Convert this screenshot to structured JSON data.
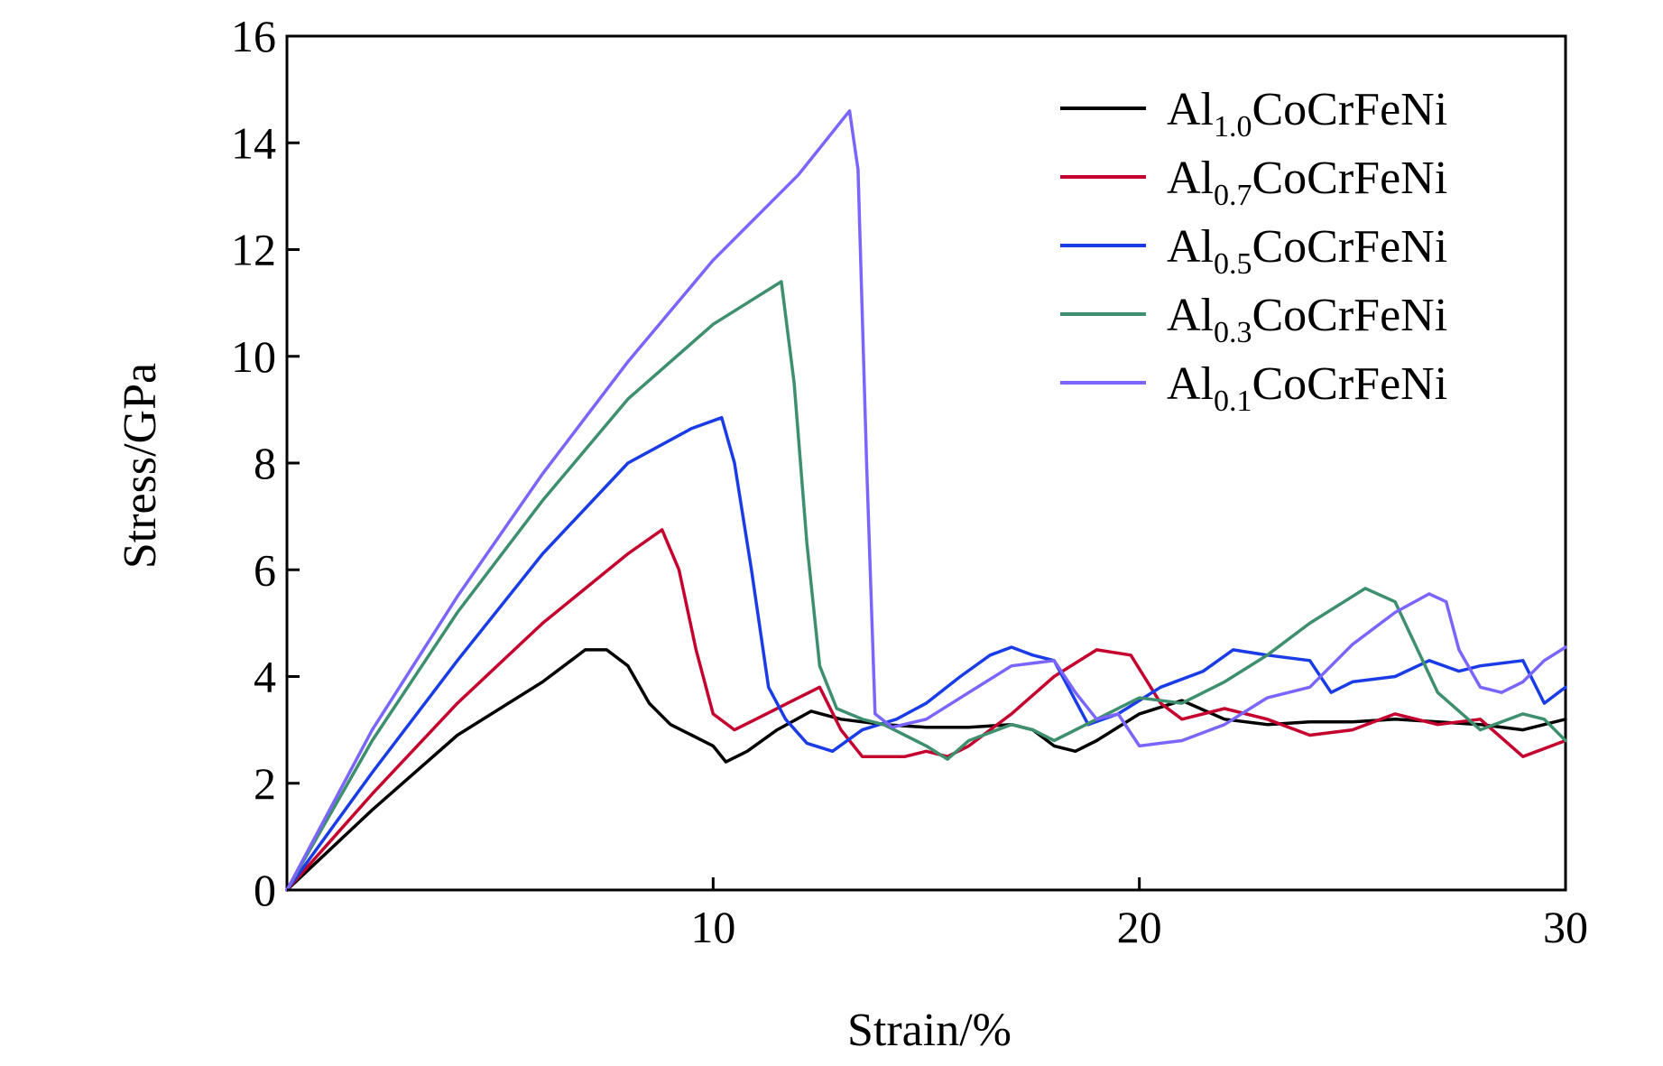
{
  "chart_data": {
    "type": "line",
    "title": "",
    "xlabel": "Strain/%",
    "ylabel": "Stress/GPa",
    "xlim": [
      0,
      30
    ],
    "ylim": [
      0,
      16
    ],
    "xticks": [
      10,
      20,
      30
    ],
    "yticks": [
      0,
      2,
      4,
      6,
      8,
      10,
      12,
      14,
      16
    ],
    "grid": false,
    "legend_position": "top-right",
    "series": [
      {
        "name": "Al1.0CoCrFeNi",
        "label_base": "Al",
        "label_sub": "1.0",
        "label_rest": "CoCrFeNi",
        "color": "#000000",
        "x": [
          0,
          2,
          4,
          6,
          7,
          7.5,
          8,
          8.5,
          9,
          9.5,
          10,
          10.3,
          10.8,
          11.5,
          12.3,
          13,
          14,
          15,
          16,
          17,
          17.5,
          18,
          18.5,
          19,
          20,
          21,
          22,
          23,
          24,
          25,
          26,
          27,
          28,
          29,
          30
        ],
        "y": [
          0,
          1.5,
          2.9,
          3.9,
          4.5,
          4.5,
          4.2,
          3.5,
          3.1,
          2.9,
          2.7,
          2.4,
          2.6,
          3.0,
          3.35,
          3.2,
          3.1,
          3.05,
          3.05,
          3.1,
          3.0,
          2.7,
          2.6,
          2.8,
          3.3,
          3.55,
          3.2,
          3.1,
          3.15,
          3.15,
          3.2,
          3.15,
          3.1,
          3.0,
          3.2
        ]
      },
      {
        "name": "Al0.7CoCrFeNi",
        "label_base": "Al",
        "label_sub": "0.7",
        "label_rest": "CoCrFeNi",
        "color": "#c4002e",
        "x": [
          0,
          2,
          4,
          6,
          8,
          8.8,
          9.2,
          9.6,
          10,
          10.5,
          11,
          12,
          12.5,
          13,
          13.5,
          14,
          14.5,
          15,
          15.5,
          16,
          17,
          18,
          19,
          19.8,
          20.5,
          21,
          22,
          23,
          24,
          25,
          26,
          27,
          28,
          29,
          30
        ],
        "y": [
          0,
          1.8,
          3.5,
          5.0,
          6.3,
          6.75,
          6.0,
          4.5,
          3.3,
          3.0,
          3.2,
          3.6,
          3.8,
          3.0,
          2.5,
          2.5,
          2.5,
          2.6,
          2.5,
          2.7,
          3.3,
          4.0,
          4.5,
          4.4,
          3.5,
          3.2,
          3.4,
          3.2,
          2.9,
          3.0,
          3.3,
          3.1,
          3.2,
          2.5,
          2.8
        ]
      },
      {
        "name": "Al0.5CoCrFeNi",
        "label_base": "Al",
        "label_sub": "0.5",
        "label_rest": "CoCrFeNi",
        "color": "#1a3ce6",
        "x": [
          0,
          2,
          4,
          6,
          8,
          9.5,
          10.2,
          10.5,
          10.9,
          11.3,
          11.7,
          12.2,
          12.8,
          13.5,
          14.3,
          15,
          15.8,
          16.5,
          17,
          17.5,
          18,
          18.8,
          19.5,
          20.5,
          21.5,
          22.2,
          23,
          24,
          24.5,
          25,
          26,
          26.8,
          27.5,
          28,
          29,
          29.5,
          30
        ],
        "y": [
          0,
          2.2,
          4.3,
          6.3,
          8.0,
          8.65,
          8.85,
          8.0,
          6.0,
          3.8,
          3.2,
          2.75,
          2.6,
          3.0,
          3.2,
          3.5,
          4.0,
          4.4,
          4.55,
          4.4,
          4.3,
          3.1,
          3.3,
          3.8,
          4.1,
          4.5,
          4.4,
          4.3,
          3.7,
          3.9,
          4.0,
          4.3,
          4.1,
          4.2,
          4.3,
          3.5,
          3.8
        ]
      },
      {
        "name": "Al0.3CoCrFeNi",
        "label_base": "Al",
        "label_sub": "0.3",
        "label_rest": "CoCrFeNi",
        "color": "#3e8f6e",
        "x": [
          0,
          2,
          4,
          6,
          8,
          10,
          11,
          11.6,
          11.9,
          12.2,
          12.5,
          12.9,
          13.5,
          14,
          15,
          15.5,
          16,
          17,
          17.5,
          18,
          19,
          20,
          21,
          22,
          23,
          24,
          25,
          25.3,
          26,
          27,
          28,
          29,
          29.5,
          30
        ],
        "y": [
          0,
          2.8,
          5.2,
          7.3,
          9.2,
          10.6,
          11.1,
          11.4,
          9.5,
          6.5,
          4.2,
          3.4,
          3.2,
          3.1,
          2.7,
          2.45,
          2.8,
          3.1,
          3.0,
          2.8,
          3.2,
          3.6,
          3.5,
          3.9,
          4.4,
          5.0,
          5.5,
          5.65,
          5.4,
          3.7,
          3.0,
          3.3,
          3.2,
          2.8
        ]
      },
      {
        "name": "Al0.1CoCrFeNi",
        "label_base": "Al",
        "label_sub": "0.1",
        "label_rest": "CoCrFeNi",
        "color": "#7a66ff",
        "x": [
          0,
          2,
          4,
          6,
          8,
          10,
          12,
          13.2,
          13.4,
          13.6,
          13.8,
          14.2,
          15,
          16,
          17,
          18,
          18.5,
          19,
          19.5,
          20,
          20.5,
          21,
          22,
          23,
          24,
          24.5,
          25,
          26,
          26.8,
          27.2,
          27.5,
          28,
          28.5,
          29,
          29.5,
          30
        ],
        "y": [
          0,
          3.0,
          5.5,
          7.8,
          9.9,
          11.8,
          13.4,
          14.6,
          13.5,
          8.0,
          3.3,
          3.05,
          3.2,
          3.7,
          4.2,
          4.3,
          3.7,
          3.2,
          3.3,
          2.7,
          2.75,
          2.8,
          3.1,
          3.6,
          3.8,
          4.2,
          4.6,
          5.2,
          5.55,
          5.4,
          4.5,
          3.8,
          3.7,
          3.9,
          4.3,
          4.55
        ]
      }
    ]
  }
}
